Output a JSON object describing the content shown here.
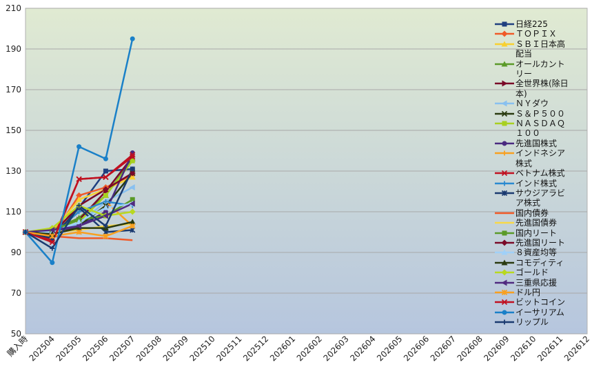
{
  "chart_data": {
    "type": "line",
    "categories": [
      "購入時",
      "202504",
      "202505",
      "202506",
      "202507",
      "202508",
      "202509",
      "202510",
      "202511",
      "202512",
      "202601",
      "202602",
      "202603",
      "202604",
      "202605",
      "202606",
      "202607",
      "202608",
      "202609",
      "202610",
      "202611",
      "202612"
    ],
    "ylim": [
      50,
      210
    ],
    "yticks": [
      50,
      70,
      90,
      110,
      130,
      150,
      170,
      190,
      210
    ],
    "grid": true,
    "legend": "right",
    "series": [
      {
        "name": "日経225",
        "color": "#1f3f7f",
        "marker": "square",
        "values": [
          100,
          98,
          112,
          130,
          131,
          null,
          null,
          null,
          null,
          null,
          null,
          null,
          null,
          null,
          null,
          null,
          null,
          null,
          null,
          null,
          null,
          null
        ]
      },
      {
        "name": "ＴＯＰＩＸ",
        "color": "#f05a28",
        "marker": "diamond",
        "values": [
          100,
          98,
          118,
          122,
          128,
          null,
          null,
          null,
          null,
          null,
          null,
          null,
          null,
          null,
          null,
          null,
          null,
          null,
          null,
          null,
          null,
          null
        ]
      },
      {
        "name": "ＳＢＩ日本高配当",
        "color": "#f8d030",
        "marker": "triangle",
        "values": [
          100,
          100,
          116,
          121,
          127,
          null,
          null,
          null,
          null,
          null,
          null,
          null,
          null,
          null,
          null,
          null,
          null,
          null,
          null,
          null,
          null,
          null
        ]
      },
      {
        "name": "オールカントリー",
        "color": "#5a9a28",
        "marker": "triangle",
        "values": [
          100,
          101,
          107,
          118,
          136,
          null,
          null,
          null,
          null,
          null,
          null,
          null,
          null,
          null,
          null,
          null,
          null,
          null,
          null,
          null,
          null,
          null
        ]
      },
      {
        "name": "全世界株(除日本)",
        "color": "#7a0a28",
        "marker": "triangle-right",
        "values": [
          100,
          101,
          106,
          120,
          137,
          null,
          null,
          null,
          null,
          null,
          null,
          null,
          null,
          null,
          null,
          null,
          null,
          null,
          null,
          null,
          null,
          null
        ]
      },
      {
        "name": "ＮＹダウ",
        "color": "#88c0f0",
        "marker": "triangle-left",
        "values": [
          100,
          100,
          104,
          115,
          122,
          null,
          null,
          null,
          null,
          null,
          null,
          null,
          null,
          null,
          null,
          null,
          null,
          null,
          null,
          null,
          null,
          null
        ]
      },
      {
        "name": "Ｓ＆Ｐ５００",
        "color": "#2a3a10",
        "marker": "x",
        "values": [
          100,
          99,
          103,
          113,
          129,
          null,
          null,
          null,
          null,
          null,
          null,
          null,
          null,
          null,
          null,
          null,
          null,
          null,
          null,
          null,
          null,
          null
        ]
      },
      {
        "name": "ＮＡＳＤＡＱ１００",
        "color": "#a8d020",
        "marker": "square",
        "values": [
          100,
          101,
          105,
          118,
          135,
          null,
          null,
          null,
          null,
          null,
          null,
          null,
          null,
          null,
          null,
          null,
          null,
          null,
          null,
          null,
          null,
          null
        ]
      },
      {
        "name": "先進国株式",
        "color": "#4a2a80",
        "marker": "circle",
        "values": [
          100,
          100,
          103,
          110,
          139,
          null,
          null,
          null,
          null,
          null,
          null,
          null,
          null,
          null,
          null,
          null,
          null,
          null,
          null,
          null,
          null,
          null
        ]
      },
      {
        "name": "インドネシア株式",
        "color": "#f8a020",
        "marker": "plus",
        "values": [
          100,
          101,
          110,
          115,
          103,
          null,
          null,
          null,
          null,
          null,
          null,
          null,
          null,
          null,
          null,
          null,
          null,
          null,
          null,
          null,
          null,
          null
        ]
      },
      {
        "name": "ベトナム株式",
        "color": "#c01020",
        "marker": "x",
        "values": [
          100,
          96,
          126,
          127,
          137,
          null,
          null,
          null,
          null,
          null,
          null,
          null,
          null,
          null,
          null,
          null,
          null,
          null,
          null,
          null,
          null,
          null
        ]
      },
      {
        "name": "インド株式",
        "color": "#2a8ad0",
        "marker": "plus",
        "values": [
          100,
          99,
          110,
          115,
          113,
          null,
          null,
          null,
          null,
          null,
          null,
          null,
          null,
          null,
          null,
          null,
          null,
          null,
          null,
          null,
          null,
          null
        ]
      },
      {
        "name": "サウジアラビア株式",
        "color": "#1a3a70",
        "marker": "star",
        "values": [
          100,
          97,
          112,
          100,
          101,
          null,
          null,
          null,
          null,
          null,
          null,
          null,
          null,
          null,
          null,
          null,
          null,
          null,
          null,
          null,
          null,
          null
        ]
      },
      {
        "name": "国内債券",
        "color": "#f05a28",
        "marker": "none",
        "values": [
          100,
          98,
          97,
          97,
          96,
          null,
          null,
          null,
          null,
          null,
          null,
          null,
          null,
          null,
          null,
          null,
          null,
          null,
          null,
          null,
          null,
          null
        ]
      },
      {
        "name": "先進国債券",
        "color": "#f8d848",
        "marker": "none",
        "values": [
          100,
          100,
          101,
          103,
          104,
          null,
          null,
          null,
          null,
          null,
          null,
          null,
          null,
          null,
          null,
          null,
          null,
          null,
          null,
          null,
          null,
          null
        ]
      },
      {
        "name": "国内リート",
        "color": "#5a9a28",
        "marker": "square",
        "values": [
          100,
          101,
          106,
          108,
          116,
          null,
          null,
          null,
          null,
          null,
          null,
          null,
          null,
          null,
          null,
          null,
          null,
          null,
          null,
          null,
          null,
          null
        ]
      },
      {
        "name": "先進国リート",
        "color": "#7a0a28",
        "marker": "diamond",
        "values": [
          100,
          99,
          113,
          121,
          129,
          null,
          null,
          null,
          null,
          null,
          null,
          null,
          null,
          null,
          null,
          null,
          null,
          null,
          null,
          null,
          null,
          null
        ]
      },
      {
        "name": "８資産均等",
        "color": "#a0d0f8",
        "marker": "triangle",
        "values": [
          100,
          100,
          105,
          112,
          114,
          null,
          null,
          null,
          null,
          null,
          null,
          null,
          null,
          null,
          null,
          null,
          null,
          null,
          null,
          null,
          null,
          null
        ]
      },
      {
        "name": "コモディティ",
        "color": "#2a3a10",
        "marker": "triangle",
        "values": [
          100,
          99,
          102,
          102,
          105,
          null,
          null,
          null,
          null,
          null,
          null,
          null,
          null,
          null,
          null,
          null,
          null,
          null,
          null,
          null,
          null,
          null
        ]
      },
      {
        "name": "ゴールド",
        "color": "#b8d820",
        "marker": "diamond",
        "values": [
          100,
          102,
          113,
          108,
          110,
          null,
          null,
          null,
          null,
          null,
          null,
          null,
          null,
          null,
          null,
          null,
          null,
          null,
          null,
          null,
          null,
          null
        ]
      },
      {
        "name": "三重県応援",
        "color": "#502a80",
        "marker": "triangle-left",
        "values": [
          100,
          101,
          103,
          108,
          114,
          null,
          null,
          null,
          null,
          null,
          null,
          null,
          null,
          null,
          null,
          null,
          null,
          null,
          null,
          null,
          null,
          null
        ]
      },
      {
        "name": "ドル円",
        "color": "#f8a020",
        "marker": "star",
        "values": [
          100,
          98,
          100,
          98,
          103,
          null,
          null,
          null,
          null,
          null,
          null,
          null,
          null,
          null,
          null,
          null,
          null,
          null,
          null,
          null,
          null,
          null
        ]
      },
      {
        "name": "ビットコイン",
        "color": "#c01020",
        "marker": "x",
        "values": [
          100,
          95,
          126,
          127,
          138,
          null,
          null,
          null,
          null,
          null,
          null,
          null,
          null,
          null,
          null,
          null,
          null,
          null,
          null,
          null,
          null,
          null
        ]
      },
      {
        "name": "イーサリアム",
        "color": "#1a80c8",
        "marker": "circle",
        "values": [
          100,
          85,
          142,
          136,
          195,
          null,
          null,
          null,
          null,
          null,
          null,
          null,
          null,
          null,
          null,
          null,
          null,
          null,
          null,
          null,
          null,
          null
        ]
      },
      {
        "name": "リップル",
        "color": "#1a3a70",
        "marker": "plus",
        "values": [
          100,
          92,
          113,
          103,
          131,
          null,
          null,
          null,
          null,
          null,
          null,
          null,
          null,
          null,
          null,
          null,
          null,
          null,
          null,
          null,
          null,
          null
        ]
      }
    ]
  }
}
